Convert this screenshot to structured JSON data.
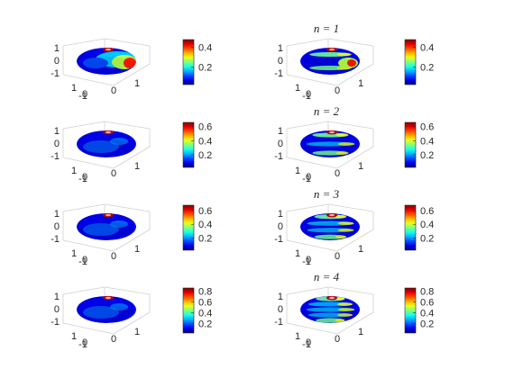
{
  "figure": {
    "background": "#ffffff",
    "colormap": "jet",
    "columns": 2,
    "rows": 4
  },
  "chart_data": [
    {
      "type": "surface",
      "title": "",
      "view": "3d",
      "xlim": [
        -1,
        1
      ],
      "ylim": [
        -1,
        1
      ],
      "zlim": [
        -1,
        1
      ],
      "xticks": [
        "-1",
        "0",
        "1"
      ],
      "yticks": [
        "0",
        "1"
      ],
      "zticks": [
        "1",
        "0",
        "-1"
      ],
      "colorbar": {
        "ticks": [
          "0.4",
          "0.2"
        ],
        "range": [
          0.02,
          0.48
        ]
      },
      "pattern": "tangential-lobes",
      "n": 0
    },
    {
      "type": "surface",
      "title": "n = 1",
      "view": "3d",
      "xlim": [
        -1,
        1
      ],
      "ylim": [
        -1,
        1
      ],
      "zlim": [
        -1,
        1
      ],
      "xticks": [
        "-1",
        "0",
        "1"
      ],
      "yticks": [
        "0",
        "1"
      ],
      "zticks": [
        "1",
        "0",
        "-1"
      ],
      "colorbar": {
        "ticks": [
          "0.4",
          "0.2"
        ],
        "range": [
          0.02,
          0.48
        ]
      },
      "pattern": "bands",
      "n": 1
    },
    {
      "type": "surface",
      "title": "",
      "view": "3d",
      "xlim": [
        -1,
        1
      ],
      "ylim": [
        -1,
        1
      ],
      "zlim": [
        -1,
        1
      ],
      "xticks": [
        "-1",
        "0",
        "1"
      ],
      "yticks": [
        "0",
        "1"
      ],
      "zticks": [
        "1",
        "0",
        "-1"
      ],
      "colorbar": {
        "ticks": [
          "0.6",
          "0.4",
          "0.2"
        ],
        "range": [
          0.02,
          0.66
        ]
      },
      "pattern": "mostly-uniform",
      "n": 0
    },
    {
      "type": "surface",
      "title": "n = 2",
      "view": "3d",
      "xlim": [
        -1,
        1
      ],
      "ylim": [
        -1,
        1
      ],
      "zlim": [
        -1,
        1
      ],
      "xticks": [
        "-1",
        "0",
        "1"
      ],
      "yticks": [
        "0",
        "1"
      ],
      "zticks": [
        "1",
        "0",
        "-1"
      ],
      "colorbar": {
        "ticks": [
          "0.6",
          "0.4",
          "0.2"
        ],
        "range": [
          0.02,
          0.66
        ]
      },
      "pattern": "bands",
      "n": 2
    },
    {
      "type": "surface",
      "title": "",
      "view": "3d",
      "xlim": [
        -1,
        1
      ],
      "ylim": [
        -1,
        1
      ],
      "zlim": [
        -1,
        1
      ],
      "xticks": [
        "-1",
        "0",
        "1"
      ],
      "yticks": [
        "0",
        "1"
      ],
      "zticks": [
        "1",
        "0",
        "-1"
      ],
      "colorbar": {
        "ticks": [
          "0.6",
          "0.4",
          "0.2"
        ],
        "range": [
          0.02,
          0.68
        ]
      },
      "pattern": "mostly-uniform",
      "n": 0
    },
    {
      "type": "surface",
      "title": "n = 3",
      "view": "3d",
      "xlim": [
        -1,
        1
      ],
      "ylim": [
        -1,
        1
      ],
      "zlim": [
        -1,
        1
      ],
      "xticks": [
        "-1",
        "0",
        "1"
      ],
      "yticks": [
        "0",
        "1"
      ],
      "zticks": [
        "1",
        "0",
        "-1"
      ],
      "colorbar": {
        "ticks": [
          "0.6",
          "0.4",
          "0.2"
        ],
        "range": [
          0.02,
          0.68
        ]
      },
      "pattern": "bands",
      "n": 3
    },
    {
      "type": "surface",
      "title": "",
      "view": "3d",
      "xlim": [
        -1,
        1
      ],
      "ylim": [
        -1,
        1
      ],
      "zlim": [
        -1,
        1
      ],
      "xticks": [
        "-1",
        "0",
        "1"
      ],
      "yticks": [
        "0",
        "1"
      ],
      "zticks": [
        "1",
        "0",
        "-1"
      ],
      "colorbar": {
        "ticks": [
          "0.8",
          "0.6",
          "0.4",
          "0.2"
        ],
        "range": [
          0.02,
          0.86
        ]
      },
      "pattern": "mostly-uniform",
      "n": 0
    },
    {
      "type": "surface",
      "title": "n = 4",
      "view": "3d",
      "xlim": [
        -1,
        1
      ],
      "ylim": [
        -1,
        1
      ],
      "zlim": [
        -1,
        1
      ],
      "xticks": [
        "-1",
        "0",
        "1"
      ],
      "yticks": [
        "0",
        "1"
      ],
      "zticks": [
        "1",
        "0",
        "-1"
      ],
      "colorbar": {
        "ticks": [
          "0.8",
          "0.6",
          "0.4",
          "0.2"
        ],
        "range": [
          0.02,
          0.86
        ]
      },
      "pattern": "bands",
      "n": 4
    }
  ]
}
